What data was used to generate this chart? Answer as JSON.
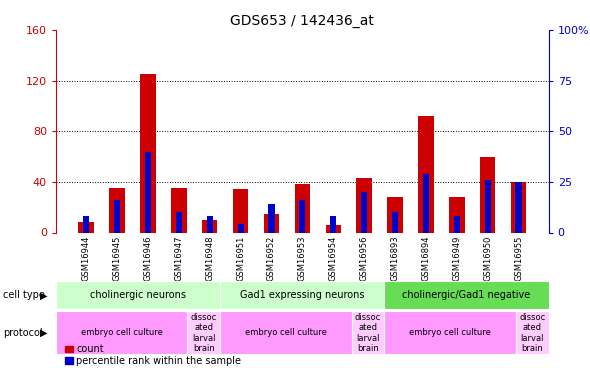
{
  "title": "GDS653 / 142436_at",
  "samples": [
    "GSM16944",
    "GSM16945",
    "GSM16946",
    "GSM16947",
    "GSM16948",
    "GSM16951",
    "GSM16952",
    "GSM16953",
    "GSM16954",
    "GSM16956",
    "GSM16893",
    "GSM16894",
    "GSM16949",
    "GSM16950",
    "GSM16955"
  ],
  "count_values": [
    8,
    35,
    125,
    35,
    10,
    34,
    15,
    38,
    6,
    43,
    28,
    92,
    28,
    60,
    40
  ],
  "percentile_values": [
    8,
    16,
    40,
    10,
    8,
    4,
    14,
    16,
    8,
    20,
    10,
    29,
    8,
    26,
    25
  ],
  "cell_type_groups": [
    {
      "label": "cholinergic neurons",
      "start": 0,
      "end": 4
    },
    {
      "label": "Gad1 expressing neurons",
      "start": 5,
      "end": 9
    },
    {
      "label": "cholinergic/Gad1 negative",
      "start": 10,
      "end": 14
    }
  ],
  "protocol_groups": [
    {
      "label": "embryo cell culture",
      "start": 0,
      "end": 3
    },
    {
      "label": "dissoc\nated\nlarval\nbrain",
      "start": 4,
      "end": 4
    },
    {
      "label": "embryo cell culture",
      "start": 5,
      "end": 8
    },
    {
      "label": "dissoc\nated\nlarval\nbrain",
      "start": 9,
      "end": 9
    },
    {
      "label": "embryo cell culture",
      "start": 10,
      "end": 13
    },
    {
      "label": "dissoc\nated\nlarval\nbrain",
      "start": 14,
      "end": 14
    }
  ],
  "ylim_left": [
    0,
    160
  ],
  "ylim_right": [
    0,
    100
  ],
  "yticks_left": [
    0,
    40,
    80,
    120,
    160
  ],
  "yticks_right": [
    0,
    25,
    50,
    75,
    100
  ],
  "left_axis_color": "#cc0000",
  "right_axis_color": "#0000cc",
  "bar_color_count": "#cc0000",
  "bar_color_percentile": "#0000cc",
  "cell_type_color_1": "#ccffcc",
  "cell_type_color_2": "#66dd55",
  "protocol_color_1": "#ff99ff",
  "protocol_color_2": "#ffccff",
  "bar_width": 0.5,
  "pct_bar_width": 0.2
}
